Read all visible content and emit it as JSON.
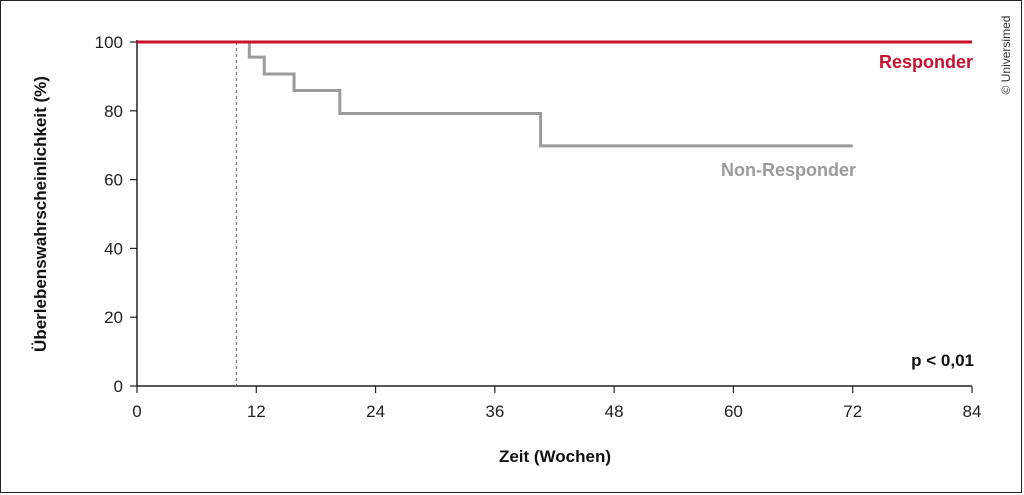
{
  "chart_data": {
    "type": "line",
    "step": true,
    "xlabel": "Zeit (Wochen)",
    "ylabel": "Überlebenswahrscheinlichkeit (%)",
    "xlim": [
      0,
      84
    ],
    "ylim": [
      0,
      100
    ],
    "xticks": [
      0,
      12,
      24,
      36,
      48,
      60,
      72,
      84
    ],
    "yticks": [
      0,
      20,
      40,
      60,
      80,
      100
    ],
    "reference_line_x": 10,
    "series": [
      {
        "name": "Responder",
        "color": "#c8102e",
        "x": [
          0,
          84
        ],
        "y": [
          100,
          100
        ]
      },
      {
        "name": "Non-Responder",
        "color": "#9b9b9b",
        "x": [
          0,
          11.3,
          12.8,
          15.8,
          20.4,
          40.6,
          72
        ],
        "y": [
          100,
          95.6,
          90.7,
          85.9,
          79.2,
          69.8,
          69.8
        ]
      }
    ],
    "annotation": "p < 0,01"
  },
  "credit": "© Universimed",
  "colors": {
    "axis": "#222222",
    "responder": "#c8102e",
    "non_responder": "#9b9b9b"
  }
}
